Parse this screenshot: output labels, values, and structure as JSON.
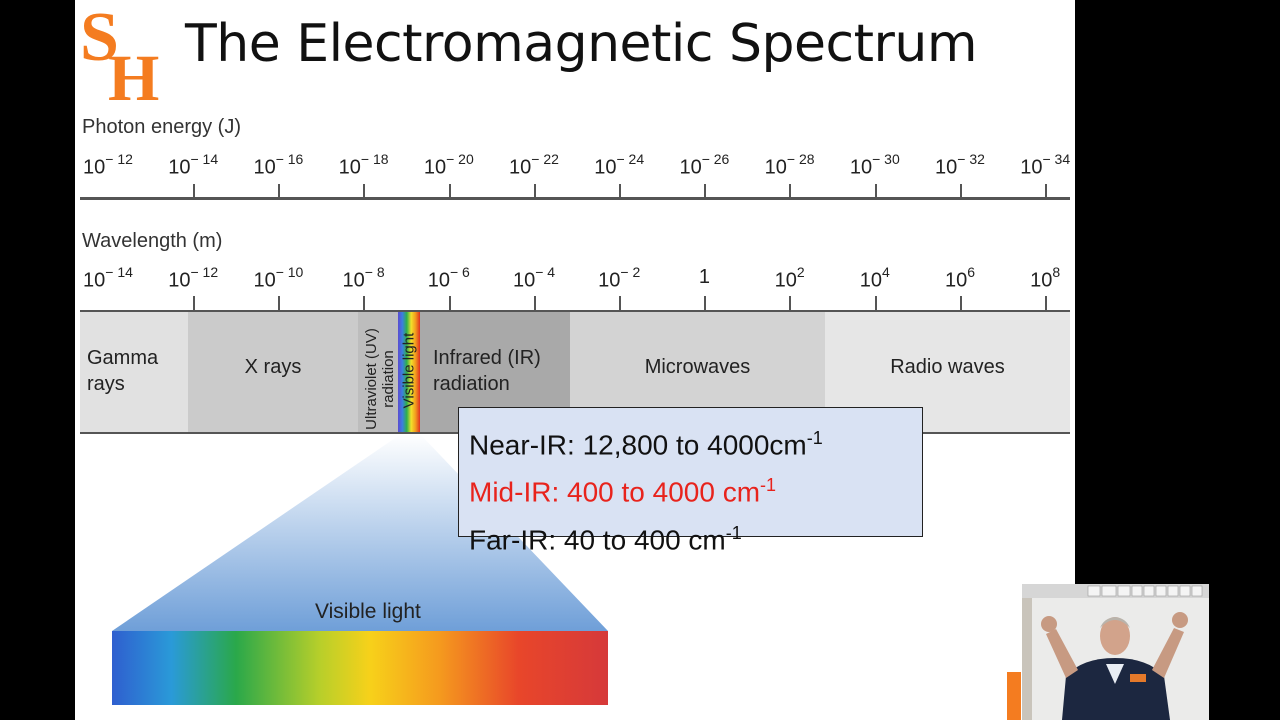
{
  "slide": {
    "title": "The Electromagnetic Spectrum",
    "logo_text": "SH"
  },
  "photon_axis": {
    "label": "Photon energy (J)",
    "ticks": [
      {
        "base": "10",
        "exp": "− 12"
      },
      {
        "base": "10",
        "exp": "− 14"
      },
      {
        "base": "10",
        "exp": "− 16"
      },
      {
        "base": "10",
        "exp": "− 18"
      },
      {
        "base": "10",
        "exp": "− 20"
      },
      {
        "base": "10",
        "exp": "− 22"
      },
      {
        "base": "10",
        "exp": "− 24"
      },
      {
        "base": "10",
        "exp": "− 26"
      },
      {
        "base": "10",
        "exp": "− 28"
      },
      {
        "base": "10",
        "exp": "− 30"
      },
      {
        "base": "10",
        "exp": "− 32"
      },
      {
        "base": "10",
        "exp": "− 34"
      }
    ]
  },
  "wavelength_axis": {
    "label": "Wavelength (m)",
    "ticks": [
      {
        "base": "10",
        "exp": "− 14"
      },
      {
        "base": "10",
        "exp": "− 12"
      },
      {
        "base": "10",
        "exp": "− 10"
      },
      {
        "base": "10",
        "exp": "− 8"
      },
      {
        "base": "10",
        "exp": "− 6"
      },
      {
        "base": "10",
        "exp": "− 4"
      },
      {
        "base": "10",
        "exp": "− 2"
      },
      {
        "base": "1",
        "exp": ""
      },
      {
        "base": "10",
        "exp": "2"
      },
      {
        "base": "10",
        "exp": "4"
      },
      {
        "base": "10",
        "exp": "6"
      },
      {
        "base": "10",
        "exp": "8"
      }
    ]
  },
  "bands": {
    "gamma": "Gamma rays",
    "xray": "X rays",
    "uv": "Ultraviolet (UV) radiation",
    "visible": "Visible light",
    "ir": "Infrared (IR) radiation",
    "microwave": "Microwaves",
    "radio": "Radio waves"
  },
  "ir_box": {
    "near": {
      "text": "Near-IR: 12,800 to 4000cm",
      "sup": "-1"
    },
    "mid": {
      "text": "Mid-IR: 400 to 4000 cm",
      "sup": "-1"
    },
    "far": {
      "text": "Far-IR: 40 to 400 cm",
      "sup": "-1"
    }
  },
  "visible_zoom": {
    "label": "Visible light"
  },
  "colors": {
    "logo_orange": "#f47c20",
    "mid_ir_red": "#e8231c",
    "box_fill": "#d9e2f3"
  }
}
